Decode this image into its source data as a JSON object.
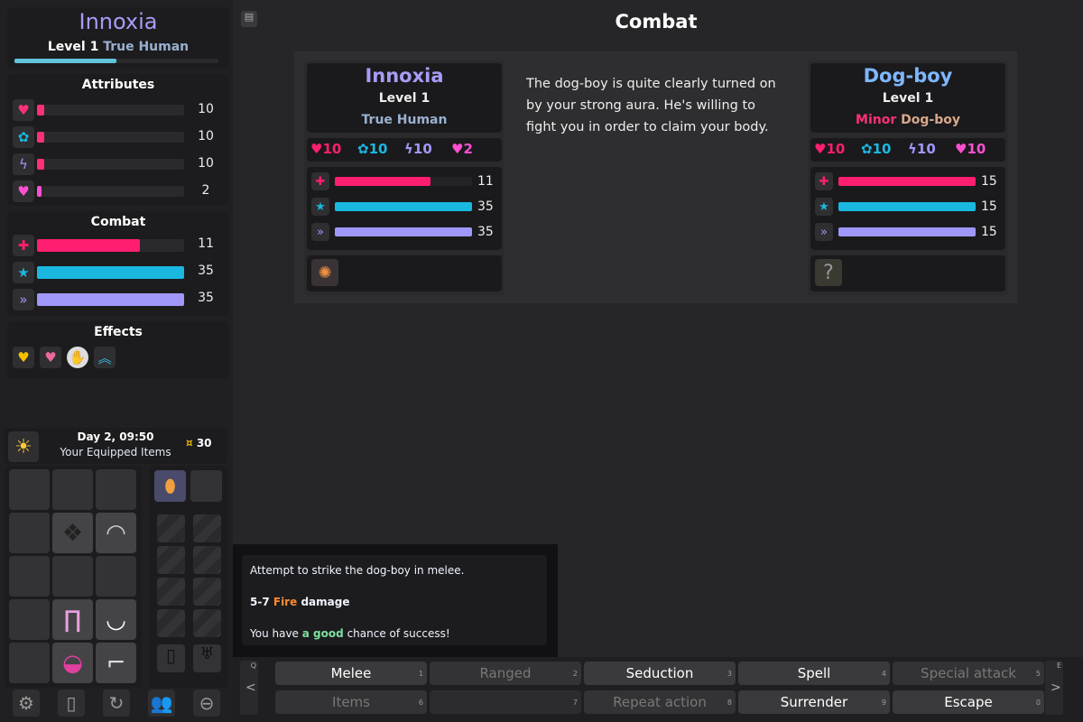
{
  "player": {
    "name": "Innoxia",
    "level_label": "Level 1",
    "race": "True Human",
    "xp_progress": 0.5,
    "attributes": [
      {
        "icon": "heart-icon",
        "value": "10",
        "fill": 0.05,
        "color": "#ff2f7a"
      },
      {
        "icon": "brain-icon",
        "value": "10",
        "fill": 0.05,
        "color": "#ff2f7a"
      },
      {
        "icon": "lightning-icon",
        "value": "10",
        "fill": 0.05,
        "color": "#ff2f7a"
      },
      {
        "icon": "demon-heart-icon",
        "value": "2",
        "fill": 0.01,
        "color": "#ff4fd0"
      }
    ],
    "combat": [
      {
        "icon": "health-icon",
        "value": "11",
        "fill": 0.7,
        "color": "#ff1e70"
      },
      {
        "icon": "mana-icon",
        "value": "35",
        "fill": 1,
        "color": "#1ab8e0"
      },
      {
        "icon": "stamina-icon",
        "value": "35",
        "fill": 1,
        "color": "#9f97fa"
      }
    ]
  },
  "sidebar": {
    "attributes_title": "Attributes",
    "combat_title": "Combat",
    "effects_title": "Effects",
    "effects": [
      "angel-heart-icon",
      "pink-heart-icon",
      "hand-icon",
      "chevrons-up-icon"
    ],
    "date": "Day 2, 09:50",
    "equipped_label": "Your Equipped Items",
    "money": "30",
    "bottom_icons": [
      "settings-icon",
      "phone-icon",
      "cycle-icon",
      "people-icon",
      "zoom-out-icon"
    ]
  },
  "main": {
    "title": "Combat",
    "description": "The dog-boy is quite clearly turned on by your strong aura. He's willing to fight you in order to claim your body.",
    "player_card": {
      "name": "Innoxia",
      "level": "Level 1",
      "race": "True Human",
      "stats": [
        "10",
        "10",
        "10",
        "2"
      ],
      "bars": [
        {
          "value": "11",
          "fill": 0.7
        },
        {
          "value": "35",
          "fill": 1
        },
        {
          "value": "35",
          "fill": 1
        }
      ]
    },
    "enemy_card": {
      "name": "Dog-boy",
      "level": "Level 1",
      "race_prefix": "Minor",
      "race": "Dog-boy",
      "stats": [
        "10",
        "10",
        "10",
        "10"
      ],
      "bars": [
        {
          "value": "15",
          "fill": 1
        },
        {
          "value": "15",
          "fill": 1
        },
        {
          "value": "15",
          "fill": 1
        }
      ]
    }
  },
  "tooltip": {
    "line1": "Attempt to strike the dog-boy in melee.",
    "damage": "5-7",
    "element": "Fire",
    "damage_suffix": "damage",
    "chance_prefix": "You have",
    "chance": "a good",
    "chance_suffix": "chance of success!"
  },
  "actions": {
    "prev_key": "Q",
    "next_key": "E",
    "prev": "<",
    "next": ">",
    "buttons": [
      {
        "label": "Melee",
        "key": "1",
        "enabled": true
      },
      {
        "label": "Ranged",
        "key": "2",
        "enabled": false
      },
      {
        "label": "Seduction",
        "key": "3",
        "enabled": true
      },
      {
        "label": "Spell",
        "key": "4",
        "enabled": true
      },
      {
        "label": "Special attack",
        "key": "5",
        "enabled": false
      },
      {
        "label": "Items",
        "key": "6",
        "enabled": false
      },
      {
        "label": "",
        "key": "7",
        "enabled": false
      },
      {
        "label": "Repeat action",
        "key": "8",
        "enabled": false
      },
      {
        "label": "Surrender",
        "key": "9",
        "enabled": true
      },
      {
        "label": "Escape",
        "key": "0",
        "enabled": true
      }
    ]
  }
}
